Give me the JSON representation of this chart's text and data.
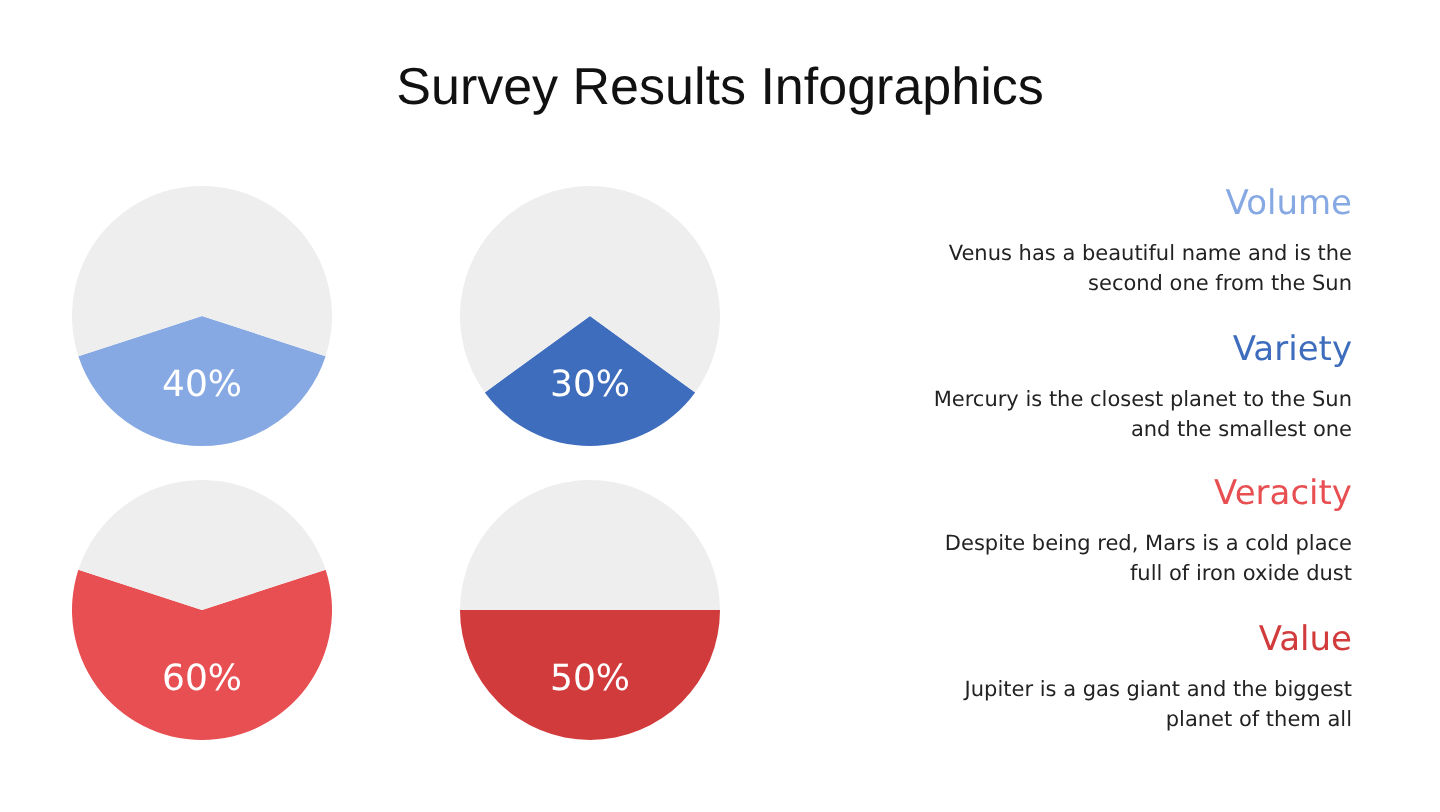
{
  "chart_data": [
    {
      "type": "pie",
      "categories": [
        null,
        null
      ],
      "values": [
        40,
        60
      ],
      "colors": [
        "#86a8e3",
        "#eeeeee"
      ],
      "value_labels": [
        "40%",
        null
      ]
    },
    {
      "type": "pie",
      "categories": [
        null,
        null
      ],
      "values": [
        30,
        70
      ],
      "colors": [
        "#3f6dbd",
        "#eeeeee"
      ],
      "value_labels": [
        "30%",
        null
      ]
    },
    {
      "type": "pie",
      "categories": [
        null,
        null
      ],
      "values": [
        60,
        40
      ],
      "colors": [
        "#e84f52",
        "#eeeeee"
      ],
      "value_labels": [
        "60%",
        null
      ]
    },
    {
      "type": "pie",
      "categories": [
        null,
        null
      ],
      "values": [
        50,
        50
      ],
      "colors": [
        "#d23b3b",
        "#eeeeee"
      ],
      "value_labels": [
        "50%",
        null
      ]
    },
    {
      "type": "other",
      "title": "Survey Results Infographics",
      "annotations": [
        "Volume",
        "Venus has a beautiful name and is the second one from the Sun",
        "Variety",
        "Mercury is the closest planet to the Sun and the smallest one",
        "Veracity",
        "Despite being red, Mars is a cold place full of iron oxide dust",
        "Value",
        "Jupiter is a gas giant and the biggest planet of them all"
      ]
    }
  ]
}
